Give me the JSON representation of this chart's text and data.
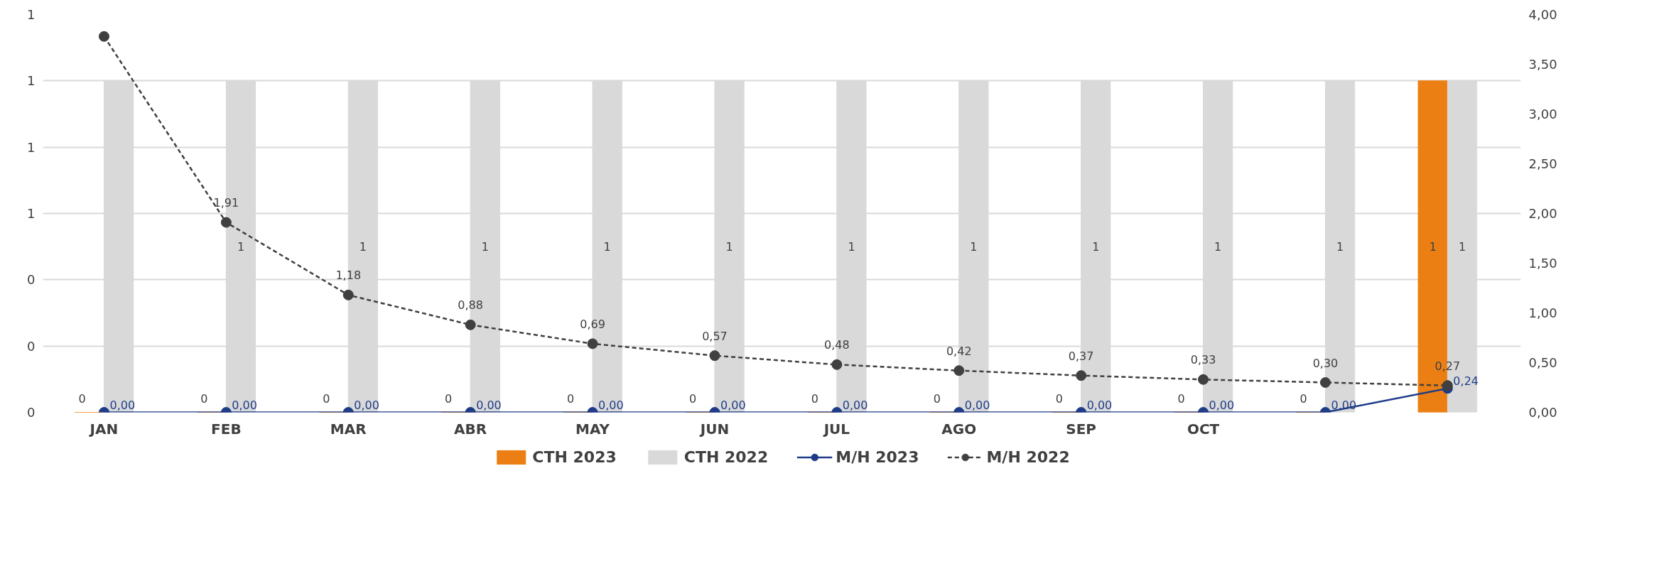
{
  "chart_data": {
    "type": "bar",
    "categories": [
      "JAN",
      "FEB",
      "MAR",
      "ABR",
      "MAY",
      "JUN",
      "JUL",
      "AGO",
      "SEP",
      "OCT",
      null,
      null
    ],
    "series": [
      {
        "name": "CTH 2023",
        "color": "#ec7f13",
        "values": [
          0,
          0,
          0,
          0,
          0,
          0,
          0,
          0,
          0,
          0,
          0,
          1
        ],
        "value_labels": [
          "0",
          "0",
          "0",
          "0",
          "0",
          "0",
          "0",
          "0",
          "0",
          "0",
          "0",
          "1"
        ]
      },
      {
        "name": "CTH 2022",
        "color": "#d9d9d9",
        "values": [
          1,
          1,
          1,
          1,
          1,
          1,
          1,
          1,
          1,
          1,
          1,
          1
        ],
        "value_labels": [
          null,
          "1",
          "1",
          "1",
          "1",
          "1",
          "1",
          "1",
          "1",
          "1",
          "1",
          "1"
        ]
      },
      {
        "name": "M/H 2023",
        "type": "line",
        "axis": "y2",
        "color": "#1f3c88",
        "line_style": "solid",
        "values": [
          0,
          0,
          0,
          0,
          0,
          0,
          0,
          0,
          0,
          0,
          0,
          0.24
        ],
        "value_labels": [
          "0,00",
          "0,00",
          "0,00",
          "0,00",
          "0,00",
          "0,00",
          "0,00",
          "0,00",
          "0,00",
          "0,00",
          "0,00",
          "0,24"
        ]
      },
      {
        "name": "M/H 2022",
        "type": "line",
        "axis": "y2",
        "color": "#404040",
        "line_style": "dashed",
        "values": [
          3.78,
          1.91,
          1.18,
          0.88,
          0.69,
          0.57,
          0.48,
          0.42,
          0.37,
          0.33,
          0.3,
          0.27
        ],
        "value_labels": [
          null,
          "1,91",
          "1,18",
          "0,88",
          "0,69",
          "0,57",
          "0,48",
          "0,42",
          "0,37",
          "0,33",
          "0,30",
          "0,27"
        ]
      }
    ],
    "ylim": [
      0,
      1.2
    ],
    "yticks": [
      {
        "value": 0,
        "label": "0"
      },
      {
        "value": 0.2,
        "label": "0"
      },
      {
        "value": 0.4,
        "label": "0"
      },
      {
        "value": 0.6,
        "label": "1"
      },
      {
        "value": 0.8,
        "label": "1"
      },
      {
        "value": 1.0,
        "label": "1"
      },
      {
        "value": 1.2,
        "label": "1"
      }
    ],
    "y2lim": [
      0,
      4
    ],
    "y2ticks": [
      {
        "value": 0,
        "label": "0,00"
      },
      {
        "value": 0.5,
        "label": "0,50"
      },
      {
        "value": 1,
        "label": "1,00"
      },
      {
        "value": 1.5,
        "label": "1,50"
      },
      {
        "value": 2,
        "label": "2,00"
      },
      {
        "value": 2.5,
        "label": "2,50"
      },
      {
        "value": 3,
        "label": "3,00"
      },
      {
        "value": 3.5,
        "label": "3,50"
      },
      {
        "value": 4,
        "label": "4,00"
      }
    ],
    "grid": "y",
    "legend": "bottom",
    "marker": "circle"
  }
}
